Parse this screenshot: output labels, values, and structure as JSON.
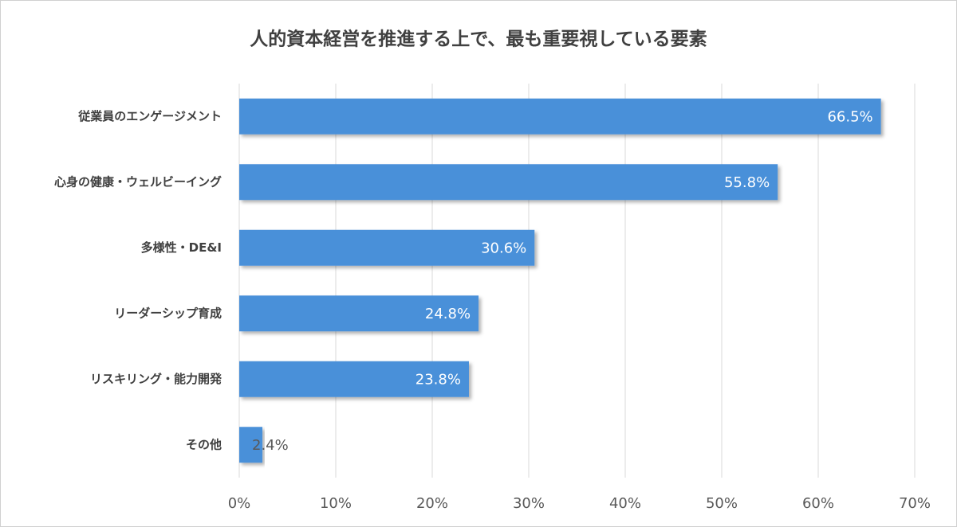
{
  "chart_data": {
    "type": "bar",
    "orientation": "horizontal",
    "title": "人的資本経営を推進する上で、最も重要視している要素",
    "categories": [
      "従業員のエンゲージメント",
      "心身の健康・ウェルビーイング",
      "多様性・DE&I",
      "リーダーシップ育成",
      "リスキリング・能力開発",
      "その他"
    ],
    "values": [
      66.5,
      55.8,
      30.6,
      24.8,
      23.8,
      2.4
    ],
    "value_labels": [
      "66.5%",
      "55.8%",
      "30.6%",
      "24.8%",
      "23.8%",
      "2.4%"
    ],
    "color": "#4a90d9",
    "xlim": [
      0,
      70
    ],
    "xticks": [
      {
        "value": 0,
        "label": "0%"
      },
      {
        "value": 10,
        "label": "10%"
      },
      {
        "value": 20,
        "label": "20%"
      },
      {
        "value": 30,
        "label": "30%"
      },
      {
        "value": 40,
        "label": "40%"
      },
      {
        "value": 50,
        "label": "50%"
      },
      {
        "value": 60,
        "label": "60%"
      },
      {
        "value": 70,
        "label": "70%"
      }
    ],
    "grid": true
  }
}
